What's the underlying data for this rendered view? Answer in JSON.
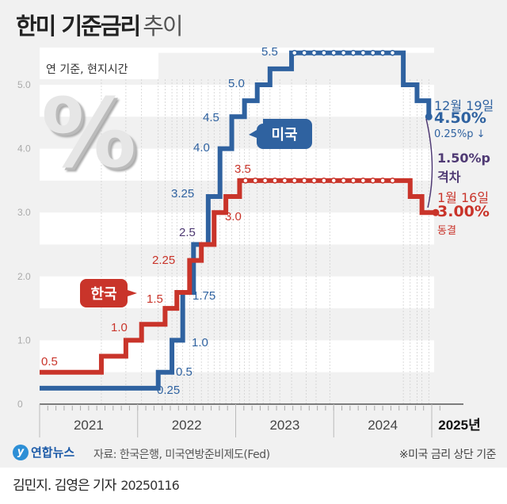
{
  "title": {
    "bold": "한미 기준금리",
    "light": "추이"
  },
  "unit_note": "연 기준, 현지시간",
  "colors": {
    "us": "#2f62a0",
    "korea": "#c9342a",
    "gap": "#4f3a74",
    "stripe": "#f1f1f1"
  },
  "chart_data": {
    "type": "line",
    "step": true,
    "ylim": [
      0,
      5.5
    ],
    "yticks": [
      "0",
      "1.0",
      "2.0",
      "3.0",
      "4.0",
      "5.0"
    ],
    "ytick_values": [
      0,
      1,
      2,
      3,
      4,
      5
    ],
    "xlim": [
      2021,
      2025.1
    ],
    "xticks": [
      "2021",
      "2022",
      "2023",
      "2024",
      "2025년"
    ],
    "grid": "horizontal stripes",
    "series": [
      {
        "name": "미국",
        "color": "#2f62a0",
        "points": [
          [
            2021.0,
            0.25
          ],
          [
            2022.21,
            0.5
          ],
          [
            2022.35,
            1.0
          ],
          [
            2022.46,
            1.75
          ],
          [
            2022.57,
            2.5
          ],
          [
            2022.72,
            3.25
          ],
          [
            2022.84,
            4.0
          ],
          [
            2022.96,
            4.5
          ],
          [
            2023.09,
            4.75
          ],
          [
            2023.22,
            5.0
          ],
          [
            2023.35,
            5.25
          ],
          [
            2023.57,
            5.5
          ],
          [
            2024.71,
            5.0
          ],
          [
            2024.85,
            4.75
          ],
          [
            2024.97,
            4.5
          ]
        ],
        "labels": [
          "0.25",
          "0.5",
          "1.0",
          "1.75",
          "2.5",
          "3.25",
          "4.0",
          "4.5",
          "5.0",
          "5.5"
        ]
      },
      {
        "name": "한국",
        "color": "#c9342a",
        "points": [
          [
            2021.0,
            0.5
          ],
          [
            2021.63,
            0.75
          ],
          [
            2021.88,
            1.0
          ],
          [
            2022.04,
            1.25
          ],
          [
            2022.28,
            1.5
          ],
          [
            2022.4,
            1.75
          ],
          [
            2022.53,
            2.25
          ],
          [
            2022.65,
            2.5
          ],
          [
            2022.78,
            3.0
          ],
          [
            2022.9,
            3.25
          ],
          [
            2023.04,
            3.5
          ],
          [
            2024.78,
            3.25
          ],
          [
            2024.9,
            3.0
          ],
          [
            2025.04,
            3.0
          ]
        ],
        "labels": [
          "0.5",
          "1.0",
          "1.5",
          "2.25",
          "3.0",
          "3.5"
        ]
      }
    ],
    "annotations": {
      "us_date": "12월 19일",
      "us_rate": "4.50%",
      "us_change": "0.25%p ↓",
      "gap_value": "1.50%p",
      "gap_label": "격차",
      "kr_date": "1월 16일",
      "kr_rate": "3.00%",
      "kr_change": "동결"
    }
  },
  "footer": {
    "logo": "연합뉴스",
    "source": "자료: 한국은행, 미국연방준비제도(Fed)",
    "note": "※미국 금리 상단 기준",
    "byline": "김민지. 김영은 기자",
    "date": "20250116"
  }
}
